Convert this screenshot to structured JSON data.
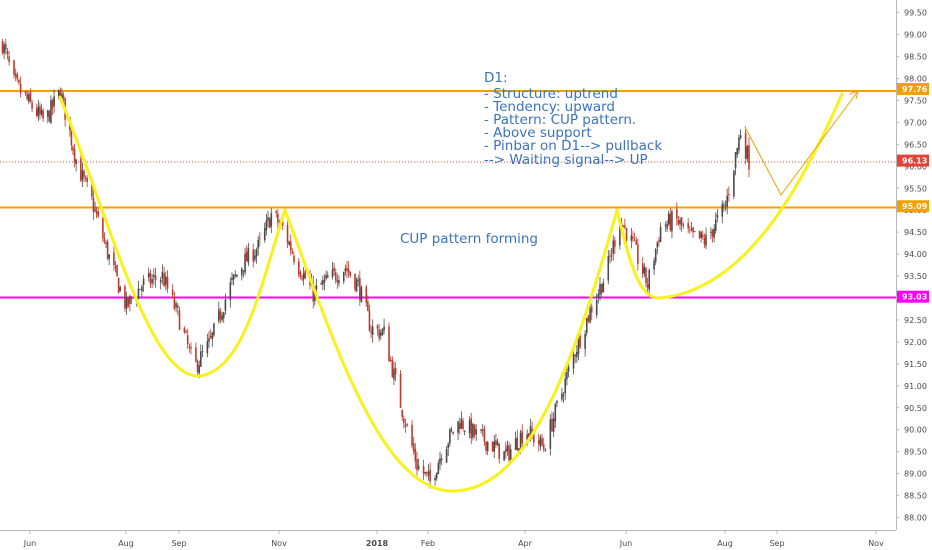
{
  "chart_data": {
    "type": "candlestick",
    "y_axis": {
      "ylim": [
        87.8,
        99.8
      ],
      "ticks": [
        "99.50",
        "99.00",
        "98.50",
        "98.00",
        "97.50",
        "97.00",
        "96.50",
        "96.00",
        "95.50",
        "95.00",
        "94.50",
        "94.00",
        "93.50",
        "93.00",
        "92.50",
        "92.00",
        "91.50",
        "91.00",
        "90.50",
        "90.00",
        "89.50",
        "89.00",
        "88.50",
        "88.00"
      ],
      "grid": false
    },
    "x_axis": {
      "start": "2017-05-15",
      "end": "2017-11-15",
      "labels": [
        {
          "text": "Jun",
          "date": "2017-06-01"
        },
        {
          "text": "Aug",
          "date": "2017-08-01"
        },
        {
          "text": "Sep",
          "date": "2017-09-01"
        },
        {
          "text": "Nov",
          "date": "2017-11-01"
        },
        {
          "text": "2018",
          "date": "2018-01-01",
          "bold": true
        },
        {
          "text": "Feb",
          "date": "2018-02-01"
        },
        {
          "text": "Apr",
          "date": "2018-04-01"
        },
        {
          "text": "Jun",
          "date": "2018-06-01"
        },
        {
          "text": "Aug",
          "date": "2018-08-01"
        },
        {
          "text": "Sep",
          "date": "2018-09-01"
        },
        {
          "text": "Nov",
          "date": "2018-11-01"
        }
      ]
    },
    "price_levels": [
      {
        "label": "97.76",
        "value": 97.76,
        "color": "#f5a000",
        "style": "solid"
      },
      {
        "label": "95.09",
        "value": 95.09,
        "color": "#f5a000",
        "style": "solid"
      },
      {
        "label": "93.03",
        "value": 93.03,
        "color": "#ff00ff",
        "style": "solid"
      },
      {
        "label": "96.13",
        "value": 96.13,
        "color": "#e0443a",
        "style": "dotted"
      }
    ],
    "anchors": [
      [
        "2017-05-15",
        98.8
      ],
      [
        "2017-05-22",
        97.9
      ],
      [
        "2017-06-01",
        97.4
      ],
      [
        "2017-06-10",
        97.0
      ],
      [
        "2017-06-20",
        97.7
      ],
      [
        "2017-07-01",
        96.0
      ],
      [
        "2017-07-10",
        95.2
      ],
      [
        "2017-07-22",
        93.8
      ],
      [
        "2017-08-01",
        92.8
      ],
      [
        "2017-08-10",
        93.3
      ],
      [
        "2017-08-22",
        93.5
      ],
      [
        "2017-09-01",
        92.5
      ],
      [
        "2017-09-10",
        91.4
      ],
      [
        "2017-09-20",
        92.0
      ],
      [
        "2017-10-01",
        93.2
      ],
      [
        "2017-10-10",
        93.8
      ],
      [
        "2017-10-20",
        94.2
      ],
      [
        "2017-10-27",
        94.9
      ],
      [
        "2017-11-03",
        94.6
      ],
      [
        "2017-11-12",
        93.8
      ],
      [
        "2017-11-22",
        93.1
      ],
      [
        "2017-12-01",
        93.4
      ],
      [
        "2017-12-12",
        93.7
      ],
      [
        "2017-12-20",
        93.3
      ],
      [
        "2017-12-28",
        92.3
      ],
      [
        "2018-01-05",
        92.2
      ],
      [
        "2018-01-15",
        90.6
      ],
      [
        "2018-01-25",
        89.2
      ],
      [
        "2018-02-02",
        88.8
      ],
      [
        "2018-02-10",
        89.6
      ],
      [
        "2018-02-20",
        90.2
      ],
      [
        "2018-03-01",
        89.9
      ],
      [
        "2018-03-10",
        89.7
      ],
      [
        "2018-03-20",
        89.4
      ],
      [
        "2018-04-01",
        90.0
      ],
      [
        "2018-04-12",
        89.6
      ],
      [
        "2018-04-20",
        90.5
      ],
      [
        "2018-05-01",
        91.8
      ],
      [
        "2018-05-10",
        92.7
      ],
      [
        "2018-05-20",
        93.6
      ],
      [
        "2018-05-28",
        94.8
      ],
      [
        "2018-06-05",
        94.2
      ],
      [
        "2018-06-14",
        93.3
      ],
      [
        "2018-06-22",
        94.6
      ],
      [
        "2018-07-01",
        94.8
      ],
      [
        "2018-07-10",
        94.4
      ],
      [
        "2018-07-20",
        94.3
      ],
      [
        "2018-08-01",
        95.1
      ],
      [
        "2018-08-10",
        96.8
      ],
      [
        "2018-08-15",
        96.13
      ]
    ],
    "annotations": {
      "note_lines": [
        "D1:",
        "- Structure: uptrend",
        "- Tendency: upward",
        "- Pattern: CUP pattern.",
        "- Above support",
        "- Pinbar on D1--> pullback",
        "--> Waiting signal--> UP"
      ],
      "cup_label": "CUP pattern forming"
    },
    "colors": {
      "up": "#4a4a4a",
      "down": "#c0392b",
      "cup_curve": "#f7f21c",
      "projection": "#f5a000",
      "axis_text": "#4a4a4a",
      "annotation_text": "#3a73c0"
    }
  }
}
